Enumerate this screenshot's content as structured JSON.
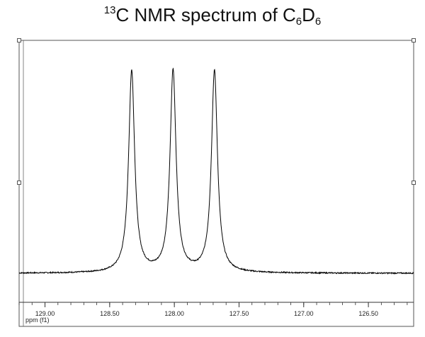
{
  "title": {
    "mass_number": "13",
    "text_a": "C NMR spectrum of C",
    "sub_a": "6",
    "text_b": "D",
    "sub_b": "6"
  },
  "chart_data": {
    "type": "line",
    "xlabel": "ppm (f1)",
    "x_reversed": true,
    "xlim": [
      129.2,
      126.15
    ],
    "xticks": [
      "129.00",
      "128.50",
      "128.00",
      "127.50",
      "127.00",
      "126.50"
    ],
    "x_minor_step": 0.1,
    "grid": false,
    "legend": "none",
    "series": [
      {
        "color": "#000000",
        "peaks": [
          {
            "ppm": 128.33,
            "height": 1.0
          },
          {
            "ppm": 128.01,
            "height": 1.0
          },
          {
            "ppm": 127.69,
            "height": 1.0
          }
        ],
        "baseline": 0.0
      }
    ]
  }
}
